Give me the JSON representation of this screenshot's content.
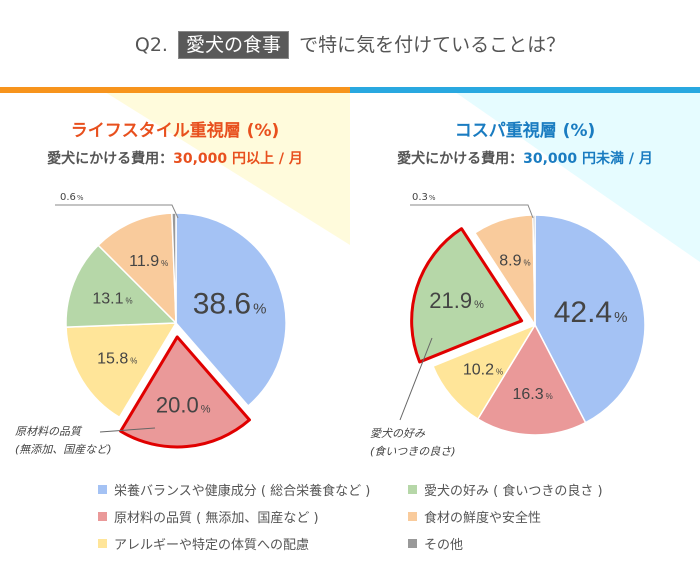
{
  "header": {
    "prefix": "Q2.",
    "highlight": "愛犬の食事",
    "suffix": "で特に気を付けていることは？"
  },
  "colors": {
    "left_accent": "#f7941d",
    "right_accent": "#29a8e0",
    "left_title": "#e8501e",
    "right_title": "#1a7cc1",
    "left_bg": "#fffbdc",
    "right_bg": "#e6fcff",
    "highlight_outline": "#e00000"
  },
  "chart_data": [
    {
      "type": "pie",
      "title": "ライフスタイル重視層 (%)",
      "subtitle_label": "愛犬にかける費用：",
      "subtitle_value": "30,000 円以上 / 月",
      "categories": [
        "栄養バランスや健康成分 ( 総合栄養食など )",
        "原材料の品質 ( 無添加、国産など )",
        "アレルギーや特定の体質への配慮",
        "愛犬の好み ( 食いつきの良さ )",
        "食材の鮮度や安全性",
        "その他"
      ],
      "values": [
        38.6,
        20.0,
        15.8,
        13.1,
        11.9,
        0.6
      ],
      "labels": [
        "38.6",
        "20.0",
        "15.8",
        "13.1",
        "11.9",
        "0.6"
      ],
      "unit": "%",
      "highlighted": 1,
      "callout": [
        "原材料の品質",
        "(無添加、国産など)"
      ]
    },
    {
      "type": "pie",
      "title": "コスパ重視層 (%)",
      "subtitle_label": "愛犬にかける費用：",
      "subtitle_value": "30,000 円未満 / 月",
      "categories": [
        "栄養バランスや健康成分 ( 総合栄養食など )",
        "原材料の品質 ( 無添加、国産など )",
        "アレルギーや特定の体質への配慮",
        "愛犬の好み ( 食いつきの良さ )",
        "食材の鮮度や安全性",
        "その他"
      ],
      "values": [
        42.4,
        16.3,
        10.2,
        21.9,
        8.9,
        0.3
      ],
      "labels": [
        "42.4",
        "16.3",
        "10.2",
        "21.9",
        "8.9",
        "0.3"
      ],
      "unit": "%",
      "highlighted": 3,
      "callout": [
        "愛犬の好み",
        "(食いつきの良さ)"
      ]
    }
  ],
  "legend": [
    {
      "label": "栄養バランスや健康成分 ( 総合栄養食など )",
      "color": "#a4c2f4"
    },
    {
      "label": "愛犬の好み ( 食いつきの良さ )",
      "color": "#b6d7a8"
    },
    {
      "label": "原材料の品質 ( 無添加、国産など )",
      "color": "#ea9999"
    },
    {
      "label": "食材の鮮度や安全性",
      "color": "#f9cb9c"
    },
    {
      "label": "アレルギーや特定の体質への配慮",
      "color": "#ffe599"
    },
    {
      "label": "その他",
      "color": "#999999"
    }
  ],
  "slice_colors": [
    "#a4c2f4",
    "#ea9999",
    "#ffe599",
    "#b6d7a8",
    "#f9cb9c",
    "#999999"
  ]
}
